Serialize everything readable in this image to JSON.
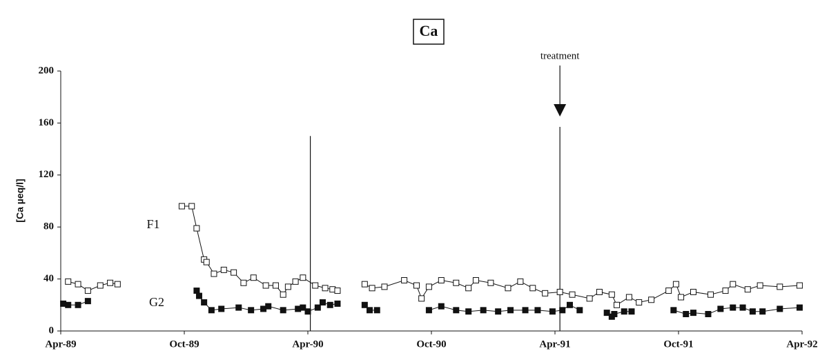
{
  "chart_data": {
    "type": "line",
    "title": "Ca",
    "y_label": "[Ca µeq/l]",
    "xlim": [
      1989.25,
      1992.25
    ],
    "xticks": [
      {
        "value": 1989.25,
        "label": "Apr-89"
      },
      {
        "value": 1989.75,
        "label": "Oct-89"
      },
      {
        "value": 1990.25,
        "label": "Apr-90"
      },
      {
        "value": 1990.75,
        "label": "Oct-90"
      },
      {
        "value": 1991.25,
        "label": "Apr-91"
      },
      {
        "value": 1991.75,
        "label": "Oct-91"
      },
      {
        "value": 1992.25,
        "label": "Apr-92"
      }
    ],
    "ylim": [
      0,
      200
    ],
    "yticks": [
      0,
      40,
      80,
      120,
      160,
      200
    ],
    "annotations": [
      {
        "text": "treatment",
        "x": 1991.27,
        "y": 165
      }
    ],
    "reference_lines": [
      {
        "x": 1990.26,
        "y": 150
      },
      {
        "x": 1991.27,
        "y": 157
      }
    ],
    "series": [
      {
        "name": "F1",
        "color": "#ffffff",
        "marker": "open-square",
        "x": [
          1989.28,
          1989.32,
          1989.36,
          1989.41,
          1989.45,
          1989.48,
          null,
          1989.74,
          1989.78,
          1989.8,
          1989.83,
          1989.84,
          1989.87,
          1989.91,
          1989.95,
          1989.99,
          1990.03,
          1990.08,
          1990.12,
          1990.15,
          1990.17,
          1990.2,
          1990.23,
          1990.28,
          1990.32,
          1990.35,
          1990.37,
          null,
          1990.48,
          1990.51,
          1990.56,
          1990.64,
          1990.69,
          1990.71,
          1990.74,
          1990.79,
          1990.85,
          1990.9,
          1990.93,
          1990.99,
          1991.06,
          1991.11,
          1991.16,
          1991.21,
          1991.27,
          1991.32,
          1991.39,
          1991.43,
          1991.48,
          1991.5,
          1991.55,
          1991.59,
          1991.64,
          1991.71,
          1991.74,
          1991.76,
          1991.81,
          1991.88,
          1991.94,
          1991.97,
          1992.03,
          1992.08,
          1992.16,
          1992.24
        ],
        "values": [
          38,
          36,
          31,
          35,
          37,
          36,
          null,
          96,
          96,
          79,
          55,
          53,
          44,
          47,
          45,
          37,
          41,
          35,
          35,
          28,
          34,
          38,
          41,
          35,
          33,
          32,
          31,
          null,
          36,
          33,
          34,
          39,
          35,
          25,
          34,
          39,
          37,
          33,
          39,
          37,
          33,
          38,
          33,
          29,
          30,
          28,
          25,
          30,
          28,
          20,
          26,
          22,
          24,
          31,
          36,
          26,
          30,
          28,
          31,
          36,
          32,
          35,
          34,
          35
        ]
      },
      {
        "name": "G2",
        "color": "#111111",
        "marker": "filled-square",
        "x": [
          1989.26,
          1989.28,
          1989.32,
          1989.36,
          null,
          1989.8,
          1989.81,
          1989.83,
          1989.86,
          1989.9,
          1989.97,
          1990.02,
          1990.07,
          1990.09,
          1990.15,
          1990.21,
          1990.23,
          1990.25,
          1990.29,
          1990.31,
          1990.34,
          1990.37,
          null,
          1990.48,
          1990.5,
          1990.53,
          null,
          1990.74,
          1990.79,
          1990.85,
          1990.9,
          1990.96,
          1991.02,
          1991.07,
          1991.13,
          1991.18,
          1991.24,
          1991.28,
          1991.31,
          1991.35,
          null,
          1991.46,
          1991.48,
          1991.49,
          1991.53,
          1991.56,
          null,
          1991.73,
          1991.78,
          1991.81,
          1991.87,
          1991.92,
          1991.97,
          1992.01,
          1992.05,
          1992.09,
          1992.16,
          1992.24
        ],
        "values": [
          21,
          20,
          20,
          23,
          null,
          31,
          27,
          22,
          16,
          17,
          18,
          16,
          17,
          19,
          16,
          17,
          18,
          15,
          18,
          22,
          20,
          21,
          null,
          20,
          16,
          16,
          null,
          16,
          19,
          16,
          15,
          16,
          15,
          16,
          16,
          16,
          15,
          16,
          20,
          16,
          null,
          14,
          11,
          13,
          15,
          15,
          null,
          16,
          13,
          14,
          13,
          17,
          18,
          18,
          15,
          15,
          17,
          18
        ]
      }
    ]
  }
}
